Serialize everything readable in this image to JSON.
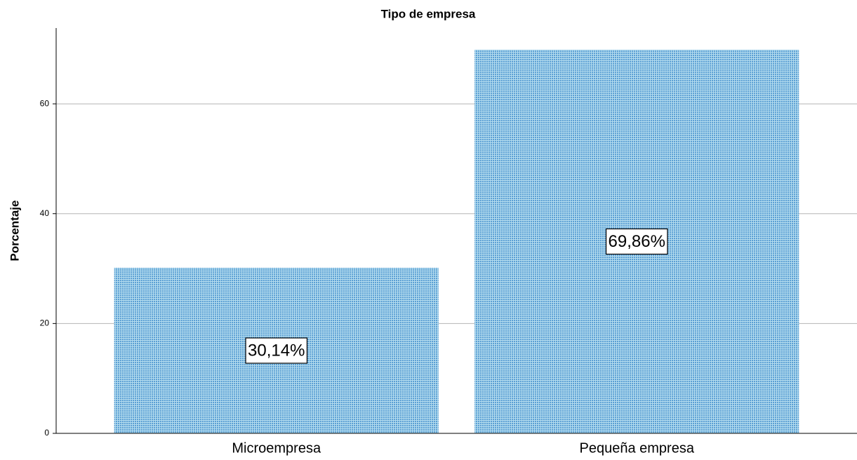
{
  "chart_data": {
    "type": "bar",
    "title": "Tipo de empresa",
    "y_label": "Porcentaje",
    "categories": [
      "Microempresa",
      "Pequeña empresa"
    ],
    "values": [
      30.14,
      69.86
    ],
    "value_labels": [
      "30,14%",
      "69,86%"
    ],
    "color": "#5b9fd4",
    "ylim": [
      0,
      73.8
    ],
    "yticks": [
      0,
      20,
      40,
      60
    ],
    "grid": true
  }
}
